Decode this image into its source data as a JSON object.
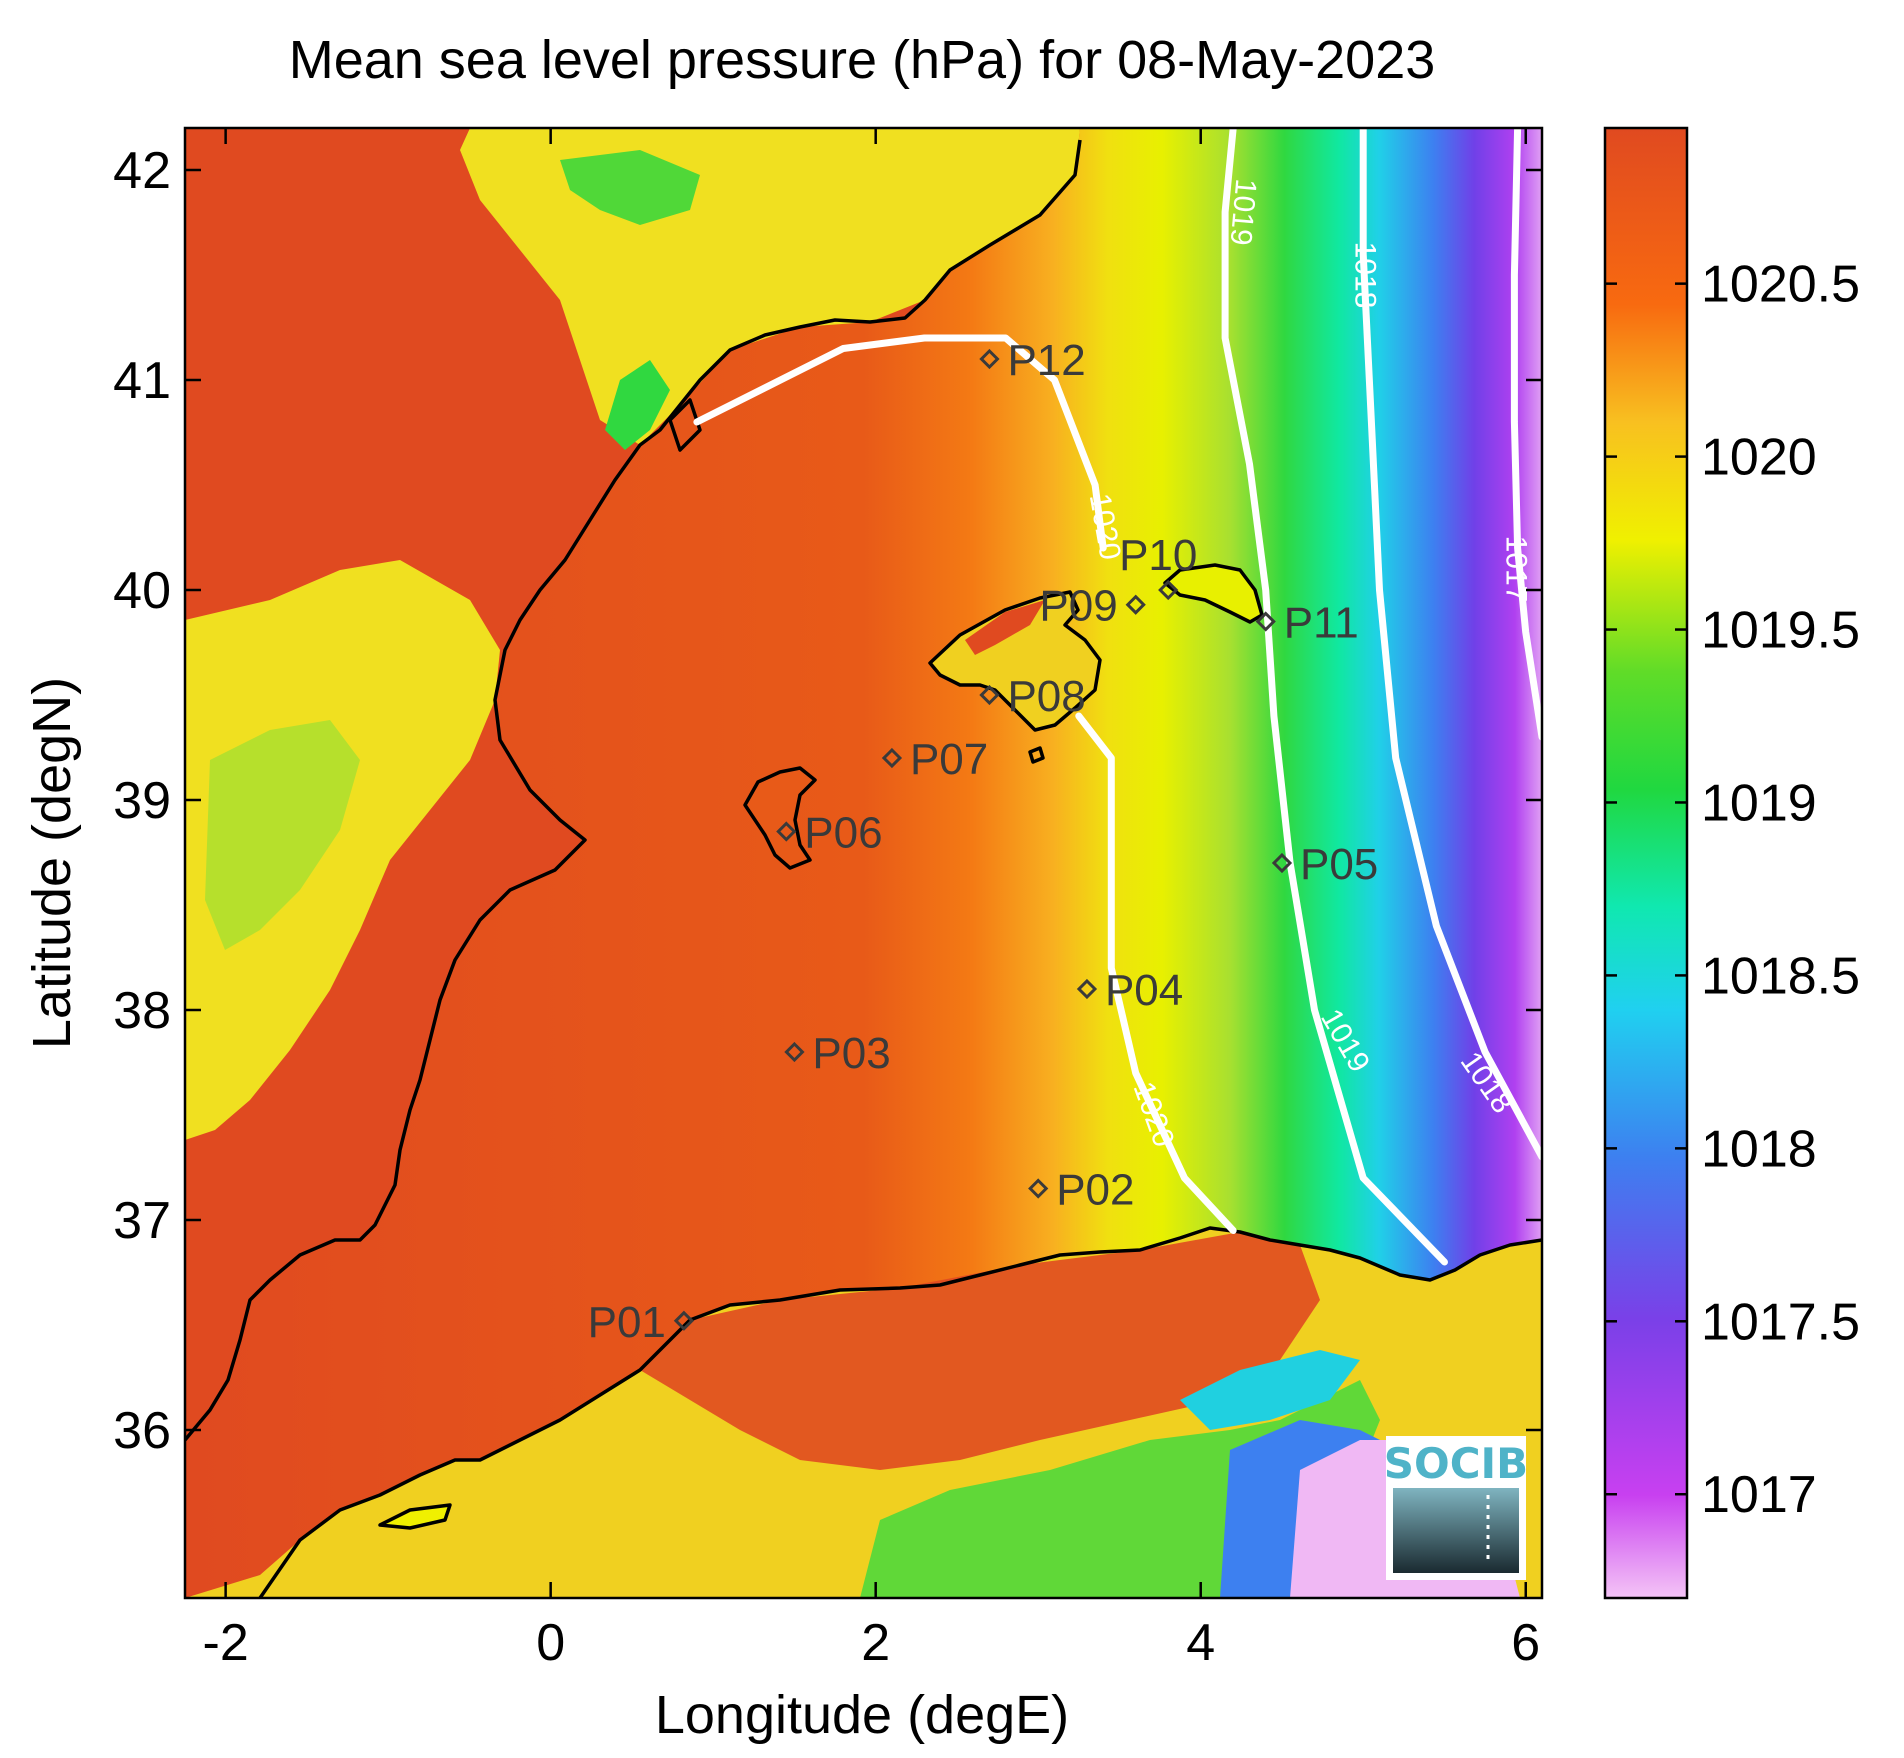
{
  "title": "Mean sea level pressure (hPa) for 08-May-2023",
  "xlabel": "Longitude (degE)",
  "ylabel": "Latitude (degN)",
  "xlim": [
    -2.25,
    6.1
  ],
  "ylim": [
    35.2,
    42.2
  ],
  "xticks": [
    -2,
    0,
    2,
    4,
    6
  ],
  "yticks": [
    36,
    37,
    38,
    39,
    40,
    41,
    42
  ],
  "colorbar": {
    "range": [
      1016.7,
      1020.95
    ],
    "ticks": [
      1017,
      1017.5,
      1018,
      1018.5,
      1019,
      1019.5,
      1020,
      1020.5
    ],
    "tick_labels": [
      "1017",
      "1017.5",
      "1018",
      "1018.5",
      "1019",
      "1019.5",
      "1020",
      "1020.5"
    ],
    "colormap": [
      "#f0b8f4",
      "#c040f0",
      "#7a40e8",
      "#3d80f0",
      "#20c8f0",
      "#10e8c0",
      "#20d860",
      "#20d820",
      "#a0e030",
      "#f0f000",
      "#f8b020",
      "#f86010",
      "#e04a20"
    ]
  },
  "stations": [
    {
      "id": "P01",
      "lon": 0.82,
      "lat": 36.52,
      "label_side": "left"
    },
    {
      "id": "P02",
      "lon": 3.0,
      "lat": 37.15,
      "label_side": "right"
    },
    {
      "id": "P03",
      "lon": 1.5,
      "lat": 37.8,
      "label_side": "right"
    },
    {
      "id": "P04",
      "lon": 3.3,
      "lat": 38.1,
      "label_side": "right"
    },
    {
      "id": "P05",
      "lon": 4.5,
      "lat": 38.7,
      "label_side": "right"
    },
    {
      "id": "P06",
      "lon": 1.45,
      "lat": 38.85,
      "label_side": "right"
    },
    {
      "id": "P07",
      "lon": 2.1,
      "lat": 39.2,
      "label_side": "right"
    },
    {
      "id": "P08",
      "lon": 2.7,
      "lat": 39.5,
      "label_side": "right"
    },
    {
      "id": "P09",
      "lon": 3.6,
      "lat": 39.93,
      "label_side": "left"
    },
    {
      "id": "P10",
      "lon": 3.8,
      "lat": 40.0,
      "label_side": "above"
    },
    {
      "id": "P11",
      "lon": 4.4,
      "lat": 39.85,
      "label_side": "right"
    },
    {
      "id": "P12",
      "lon": 2.7,
      "lat": 41.1,
      "label_side": "right"
    }
  ],
  "contours": [
    {
      "level": "1020",
      "points": [
        [
          0.9,
          40.8
        ],
        [
          1.8,
          41.15
        ],
        [
          2.3,
          41.2
        ],
        [
          2.8,
          41.2
        ],
        [
          3.1,
          41.0
        ],
        [
          3.35,
          40.5
        ],
        [
          3.4,
          40.2
        ]
      ]
    },
    {
      "level": "1020",
      "points": [
        [
          3.25,
          39.4
        ],
        [
          3.45,
          39.2
        ],
        [
          3.45,
          38.6
        ],
        [
          3.45,
          38.2
        ],
        [
          3.6,
          37.7
        ],
        [
          3.9,
          37.2
        ],
        [
          4.2,
          36.95
        ]
      ]
    },
    {
      "level": "1019",
      "points": [
        [
          4.2,
          42.2
        ],
        [
          4.15,
          41.8
        ],
        [
          4.15,
          41.2
        ],
        [
          4.3,
          40.6
        ],
        [
          4.4,
          40.0
        ],
        [
          4.45,
          39.4
        ],
        [
          4.55,
          38.7
        ],
        [
          4.7,
          38.0
        ],
        [
          5.0,
          37.2
        ],
        [
          5.5,
          36.8
        ]
      ]
    },
    {
      "level": "1018",
      "points": [
        [
          5.0,
          42.2
        ],
        [
          5.0,
          41.6
        ],
        [
          5.05,
          40.8
        ],
        [
          5.1,
          40.0
        ],
        [
          5.2,
          39.2
        ],
        [
          5.45,
          38.4
        ],
        [
          5.75,
          37.8
        ],
        [
          6.1,
          37.3
        ]
      ]
    },
    {
      "level": "1017",
      "points": [
        [
          5.95,
          42.2
        ],
        [
          5.93,
          41.5
        ],
        [
          5.93,
          40.8
        ],
        [
          5.95,
          40.2
        ],
        [
          6.0,
          39.8
        ],
        [
          6.1,
          39.3
        ]
      ]
    }
  ],
  "contour_labels": [
    {
      "text": "1020",
      "lon": 3.4,
      "lat": 40.3,
      "angle": 80
    },
    {
      "text": "1020",
      "lon": 3.7,
      "lat": 37.5,
      "angle": 70
    },
    {
      "text": "1019",
      "lon": 4.25,
      "lat": 41.8,
      "angle": 95
    },
    {
      "text": "1019",
      "lon": 4.88,
      "lat": 37.85,
      "angle": 60
    },
    {
      "text": "1018",
      "lon": 5.0,
      "lat": 41.5,
      "angle": 90
    },
    {
      "text": "1018",
      "lon": 5.75,
      "lat": 37.65,
      "angle": 55
    },
    {
      "text": "1017",
      "lon": 5.93,
      "lat": 40.1,
      "angle": 90
    }
  ],
  "logo": {
    "text": "SOCIB"
  }
}
